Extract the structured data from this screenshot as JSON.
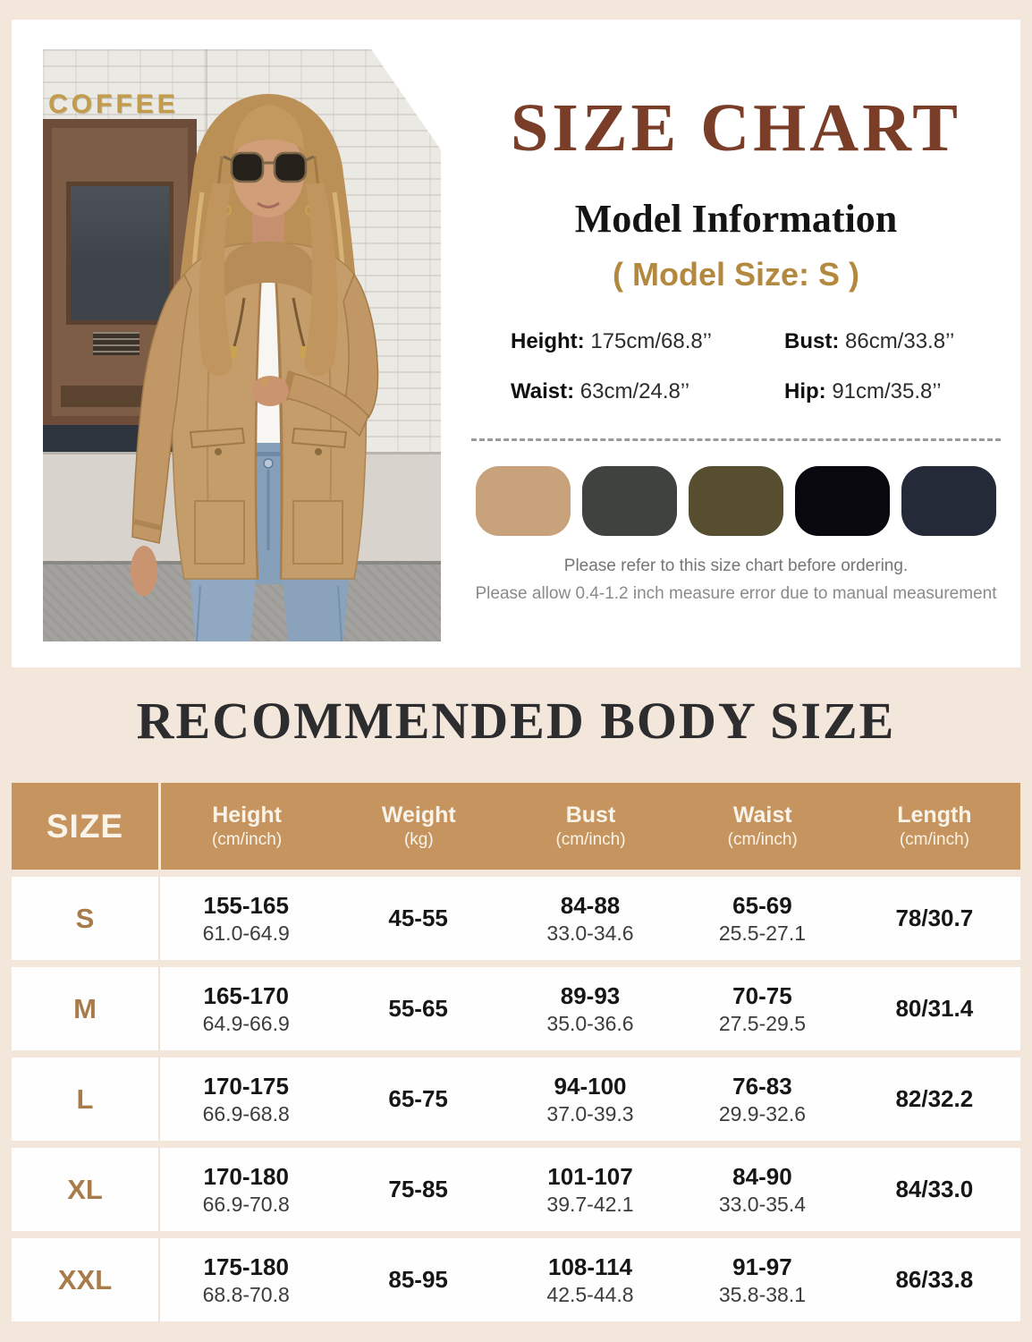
{
  "page": {
    "background": "#f3e7dc",
    "card_background": "#ffffff"
  },
  "top": {
    "title": "SIZE CHART",
    "title_color": "#7a3d28",
    "photo": {
      "sign_text": "COFFEE"
    },
    "model_info_heading": "Model Information",
    "model_size_line": "( Model Size: S )",
    "model_size_color": "#b3893f",
    "measurements": [
      {
        "key": "height",
        "label": "Height:",
        "value": "175cm/68.8’’"
      },
      {
        "key": "bust",
        "label": "Bust:",
        "value": "86cm/33.8’’"
      },
      {
        "key": "waist",
        "label": "Waist:",
        "value": "63cm/24.8’’"
      },
      {
        "key": "hip",
        "label": "Hip:",
        "value": "91cm/35.8’’"
      }
    ],
    "swatches": [
      {
        "name": "khaki",
        "hex": "#c7a27b"
      },
      {
        "name": "dark-gray",
        "hex": "#3f423f"
      },
      {
        "name": "army-green",
        "hex": "#564e2e"
      },
      {
        "name": "black",
        "hex": "#08080e"
      },
      {
        "name": "navy",
        "hex": "#242a38"
      }
    ],
    "notes": [
      "Please refer to this size chart before ordering.",
      "Please allow 0.4-1.2 inch measure error due to manual measurement"
    ]
  },
  "body_size": {
    "heading": "RECOMMENDED BODY SIZE",
    "header": {
      "size_label": "SIZE",
      "columns": [
        {
          "label": "Height",
          "sub": "(cm/inch)"
        },
        {
          "label": "Weight",
          "sub": "(kg)"
        },
        {
          "label": "Bust",
          "sub": "(cm/inch)"
        },
        {
          "label": "Waist",
          "sub": "(cm/inch)"
        },
        {
          "label": "Length",
          "sub": "(cm/inch)"
        }
      ]
    },
    "rows": [
      {
        "size": "S",
        "cells": [
          {
            "main": "155-165",
            "sub": "61.0-64.9"
          },
          {
            "main": "45-55",
            "sub": ""
          },
          {
            "main": "84-88",
            "sub": "33.0-34.6"
          },
          {
            "main": "65-69",
            "sub": "25.5-27.1"
          },
          {
            "main": "78/30.7",
            "sub": ""
          }
        ]
      },
      {
        "size": "M",
        "cells": [
          {
            "main": "165-170",
            "sub": "64.9-66.9"
          },
          {
            "main": "55-65",
            "sub": ""
          },
          {
            "main": "89-93",
            "sub": "35.0-36.6"
          },
          {
            "main": "70-75",
            "sub": "27.5-29.5"
          },
          {
            "main": "80/31.4",
            "sub": ""
          }
        ]
      },
      {
        "size": "L",
        "cells": [
          {
            "main": "170-175",
            "sub": "66.9-68.8"
          },
          {
            "main": "65-75",
            "sub": ""
          },
          {
            "main": "94-100",
            "sub": "37.0-39.3"
          },
          {
            "main": "76-83",
            "sub": "29.9-32.6"
          },
          {
            "main": "82/32.2",
            "sub": ""
          }
        ]
      },
      {
        "size": "XL",
        "cells": [
          {
            "main": "170-180",
            "sub": "66.9-70.8"
          },
          {
            "main": "75-85",
            "sub": ""
          },
          {
            "main": "101-107",
            "sub": "39.7-42.1"
          },
          {
            "main": "84-90",
            "sub": "33.0-35.4"
          },
          {
            "main": "84/33.0",
            "sub": ""
          }
        ]
      },
      {
        "size": "XXL",
        "cells": [
          {
            "main": "175-180",
            "sub": "68.8-70.8"
          },
          {
            "main": "85-95",
            "sub": ""
          },
          {
            "main": "108-114",
            "sub": "42.5-44.8"
          },
          {
            "main": "91-97",
            "sub": "35.8-38.1"
          },
          {
            "main": "86/33.8",
            "sub": ""
          }
        ]
      }
    ]
  }
}
